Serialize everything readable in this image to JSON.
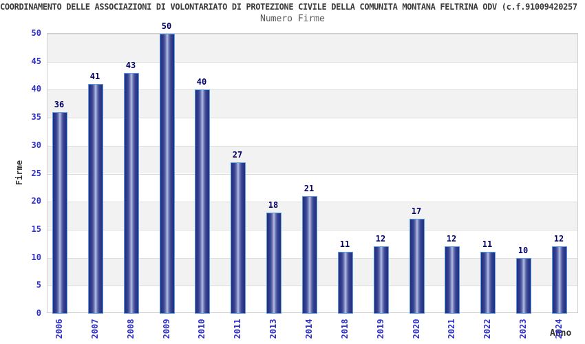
{
  "header": {
    "title": "COORDINAMENTO DELLE ASSOCIAZIONI DI VOLONTARIATO DI PROTEZIONE CIVILE DELLA COMUNITA MONTANA FELTRINA ODV (c.f.91009420257"
  },
  "chart_data": {
    "type": "bar",
    "title": "Numero Firme",
    "xlabel": "Anno",
    "ylabel": "Firme",
    "categories": [
      "2006",
      "2007",
      "2008",
      "2009",
      "2010",
      "2011",
      "2013",
      "2014",
      "2018",
      "2019",
      "2020",
      "2021",
      "2022",
      "2023",
      "2024"
    ],
    "values": [
      36,
      41,
      43,
      50,
      40,
      27,
      18,
      21,
      11,
      12,
      17,
      12,
      11,
      10,
      12
    ],
    "ylim": [
      0,
      50
    ],
    "ytick_step": 5,
    "legend": null,
    "grid": "horizontal gridlines with alternating gray/white bands every 5 units",
    "colors": {
      "bar_edge_dark": "#252f7e",
      "bar_center_light": "#b7bfe4",
      "bar_border": "#5a9fe2",
      "value_label": "#000066",
      "tick_label": "#2e2ec9",
      "band_gray": "#f2f2f2",
      "band_white": "#ffffff",
      "gridline": "#dddddd",
      "header_text": "#3a3a3a",
      "title_text": "#555555"
    }
  }
}
